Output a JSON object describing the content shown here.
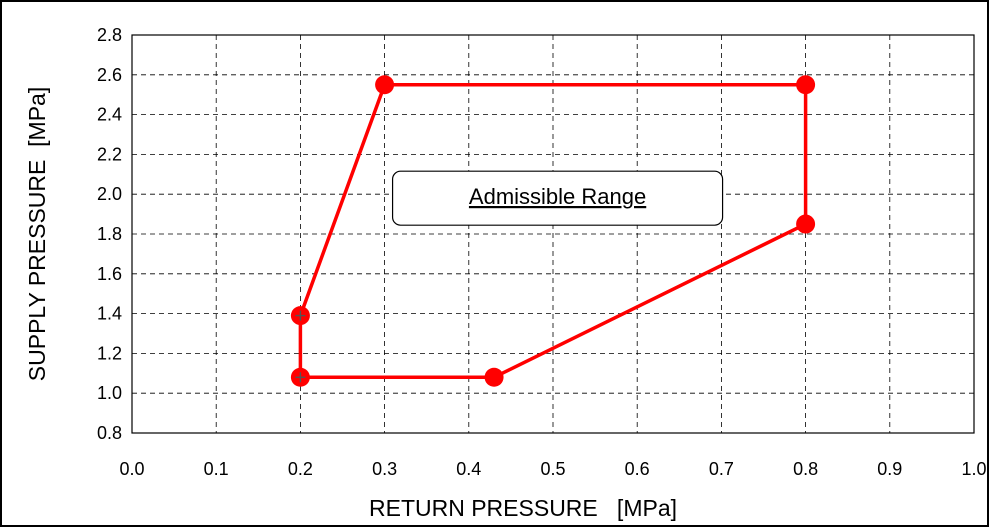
{
  "chart_data": {
    "type": "line",
    "title": "",
    "xlabel": "RETURN PRESSURE   [MPa]",
    "ylabel": "SUPPLY PRESSURE  [MPa]",
    "xlim": [
      0.0,
      1.0
    ],
    "ylim": [
      0.8,
      2.8
    ],
    "x_ticks": [
      "0.0",
      "0.1",
      "0.2",
      "0.3",
      "0.4",
      "0.5",
      "0.6",
      "0.7",
      "0.8",
      "0.9",
      "1.0"
    ],
    "y_ticks": [
      "0.8",
      "1.0",
      "1.2",
      "1.4",
      "1.6",
      "1.8",
      "2.0",
      "2.2",
      "2.4",
      "2.6",
      "2.8"
    ],
    "grid": true,
    "grid_style": "dashed",
    "legend": "none",
    "series": [
      {
        "x": [
          0.2,
          0.3,
          0.8,
          0.8,
          0.43,
          0.2,
          0.2
        ],
        "y": [
          1.39,
          2.55,
          2.55,
          1.85,
          1.08,
          1.08,
          1.39
        ],
        "color": "#ff0000",
        "closed": true
      }
    ],
    "annotations": [
      {
        "text": "Admissible Range",
        "x": 0.49,
        "y": 2.0,
        "underline": true,
        "boxed": true
      }
    ]
  }
}
